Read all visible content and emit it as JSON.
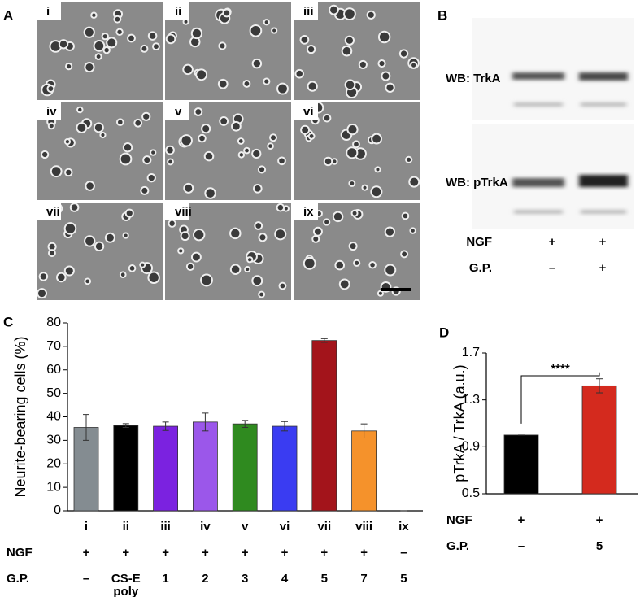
{
  "panels": {
    "A": {
      "label": "A",
      "images": [
        "i",
        "ii",
        "iii",
        "iv",
        "v",
        "vi",
        "vii",
        "viii",
        "ix"
      ]
    },
    "B": {
      "label": "B",
      "bands": [
        "WB: TrkA",
        "WB: pTrkA"
      ],
      "rows": [
        {
          "name": "NGF",
          "values": [
            "+",
            "+"
          ]
        },
        {
          "name": "G.P.",
          "values": [
            "–",
            "+"
          ]
        }
      ]
    }
  },
  "chart_data": [
    {
      "type": "bar",
      "label": "C",
      "y_label": "Neurite-bearing cells (%)",
      "categories": [
        "i",
        "ii",
        "iii",
        "iv",
        "v",
        "vi",
        "vii",
        "viii",
        "ix"
      ],
      "values": [
        35.5,
        36.3,
        36,
        37.8,
        37,
        36,
        72.5,
        34,
        0
      ],
      "errors": [
        5.5,
        0.8,
        1.8,
        3.8,
        1.5,
        2,
        0.8,
        3,
        0
      ],
      "colors": [
        "#848c91",
        "#000000",
        "#7b22e0",
        "#9b57ea",
        "#2f8a1f",
        "#3a3cf2",
        "#a3141b",
        "#f5922b",
        "#ffffff"
      ],
      "ylim": [
        0,
        80
      ],
      "yticks": [
        0,
        10,
        20,
        30,
        40,
        50,
        60,
        70,
        80
      ],
      "rows": [
        {
          "name": "NGF",
          "values": [
            "+",
            "+",
            "+",
            "+",
            "+",
            "+",
            "+",
            "+",
            "–"
          ]
        },
        {
          "name": "G.P.",
          "values": [
            "–",
            "CS-E poly",
            "1",
            "2",
            "3",
            "4",
            "5",
            "7",
            "5"
          ]
        }
      ]
    },
    {
      "type": "bar",
      "label": "D",
      "y_label": "pTrkA / TrkA (a.u.)",
      "values": [
        1.0,
        1.42
      ],
      "errors": [
        0,
        0.06
      ],
      "colors": [
        "#000000",
        "#d42a1e"
      ],
      "ylim": [
        0.5,
        1.7
      ],
      "yticks": [
        0.5,
        0.9,
        1.3,
        1.7
      ],
      "annotation": "****",
      "rows": [
        {
          "name": "NGF",
          "values": [
            "+",
            "+"
          ]
        },
        {
          "name": "G.P.",
          "values": [
            "–",
            "5"
          ]
        }
      ]
    }
  ]
}
